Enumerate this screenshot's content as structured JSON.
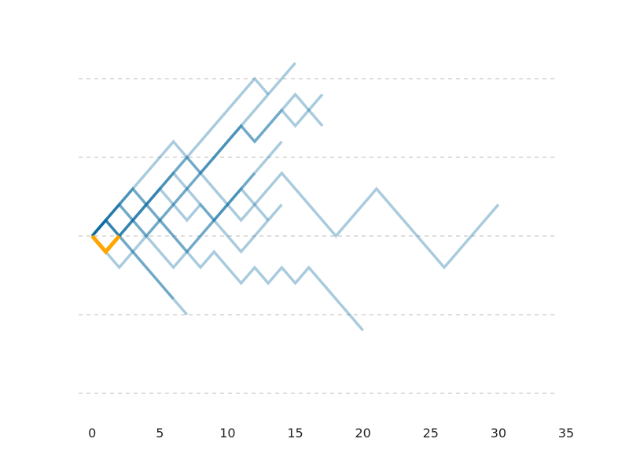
{
  "chart_data": {
    "type": "line",
    "xlim": [
      -1,
      35
    ],
    "xticks": [
      0,
      5,
      10,
      15,
      20,
      25,
      30,
      35
    ],
    "ylim": [
      -11.4,
      11.4
    ],
    "yticks": [
      -10,
      -5,
      0,
      5,
      10
    ],
    "grid": true,
    "alpha": 0.35,
    "series": [
      {
        "color": "#0a6ba0",
        "x": [
          0,
          1,
          2,
          3,
          4,
          5,
          6,
          7,
          8,
          9,
          10,
          11,
          12,
          13,
          14,
          15,
          16,
          17,
          18,
          19,
          20,
          21,
          22,
          23,
          24,
          25,
          26,
          27,
          28,
          29,
          30
        ],
        "values": [
          0,
          1,
          0,
          1,
          2,
          1,
          2,
          1,
          2,
          1,
          2,
          3,
          2,
          3,
          4,
          3,
          2,
          1,
          0,
          1,
          2,
          3,
          2,
          1,
          0,
          -1,
          -2,
          -1,
          0,
          1,
          2
        ]
      },
      {
        "color": "#0a6ba0",
        "x": [
          0,
          1,
          2,
          3,
          4,
          5,
          6,
          7,
          8,
          9,
          10,
          11,
          12,
          13,
          14,
          15,
          16,
          17,
          18,
          19,
          20
        ],
        "values": [
          0,
          -1,
          0,
          1,
          0,
          1,
          0,
          -1,
          -2,
          -1,
          -2,
          -3,
          -2,
          -3,
          -2,
          -3,
          -2,
          -3,
          -4,
          -5,
          -6
        ]
      },
      {
        "color": "#0a6ba0",
        "x": [
          0,
          1,
          2,
          3,
          4,
          5,
          6,
          7,
          8,
          9,
          10,
          11,
          12,
          13,
          14,
          15
        ],
        "values": [
          0,
          1,
          0,
          1,
          2,
          3,
          4,
          3,
          4,
          5,
          6,
          7,
          8,
          9,
          10,
          11
        ]
      },
      {
        "color": "#0a6ba0",
        "x": [
          0,
          1,
          2,
          3,
          4,
          5,
          6,
          7,
          8,
          9,
          10,
          11,
          12,
          13
        ],
        "values": [
          0,
          1,
          2,
          3,
          2,
          3,
          4,
          5,
          6,
          7,
          8,
          9,
          10,
          9
        ]
      },
      {
        "color": "#0a6ba0",
        "x": [
          0,
          1,
          2,
          3,
          4,
          5,
          6,
          7,
          8,
          9,
          10,
          11,
          12,
          13,
          14,
          15,
          16,
          17
        ],
        "values": [
          0,
          1,
          2,
          1,
          2,
          3,
          4,
          5,
          4,
          5,
          6,
          7,
          6,
          7,
          8,
          9,
          8,
          7
        ]
      },
      {
        "color": "#0a6ba0",
        "x": [
          0,
          1,
          2,
          3,
          4,
          5,
          6,
          7,
          8,
          9,
          10,
          11,
          12,
          13,
          14,
          15,
          16,
          17
        ],
        "values": [
          0,
          -1,
          0,
          1,
          2,
          3,
          2,
          3,
          4,
          5,
          6,
          7,
          6,
          7,
          8,
          7,
          8,
          9
        ]
      },
      {
        "color": "#0a6ba0",
        "x": [
          0,
          1,
          2,
          3,
          4,
          5,
          6,
          7
        ],
        "values": [
          0,
          1,
          0,
          -1,
          -2,
          -3,
          -4,
          -5
        ]
      },
      {
        "color": "#0a6ba0",
        "x": [
          0,
          1,
          2,
          3,
          4,
          5,
          6,
          7,
          8,
          9,
          10,
          11,
          12,
          13,
          14
        ],
        "values": [
          0,
          1,
          2,
          3,
          2,
          1,
          2,
          3,
          2,
          1,
          0,
          -1,
          0,
          1,
          2
        ]
      },
      {
        "color": "#0a6ba0",
        "x": [
          0,
          1,
          2,
          3,
          4,
          5,
          6
        ],
        "values": [
          0,
          -1,
          -2,
          -1,
          -2,
          -3,
          -4
        ]
      },
      {
        "color": "#0a6ba0",
        "x": [
          0,
          1,
          2,
          3,
          4,
          5,
          6,
          7,
          8,
          9,
          10,
          11,
          12,
          13
        ],
        "values": [
          0,
          1,
          2,
          3,
          4,
          5,
          6,
          5,
          4,
          3,
          2,
          1,
          2,
          1
        ]
      },
      {
        "color": "#0a6ba0",
        "x": [
          0,
          1,
          2,
          3,
          4,
          5,
          6,
          7,
          8,
          9,
          10,
          11,
          12,
          13,
          14
        ],
        "values": [
          0,
          1,
          0,
          -1,
          0,
          -1,
          -2,
          -1,
          0,
          1,
          2,
          3,
          4,
          5,
          6
        ]
      },
      {
        "color": "#0a6ba0",
        "x": [
          0,
          1,
          2,
          3,
          4,
          5,
          6,
          7,
          8,
          9,
          10,
          11,
          12
        ],
        "values": [
          0,
          1,
          2,
          1,
          0,
          1,
          0,
          -1,
          0,
          1,
          2,
          3,
          4
        ]
      },
      {
        "color": "#ffa500",
        "x": [
          0,
          1,
          2
        ],
        "values": [
          0,
          -1,
          0
        ]
      }
    ]
  }
}
